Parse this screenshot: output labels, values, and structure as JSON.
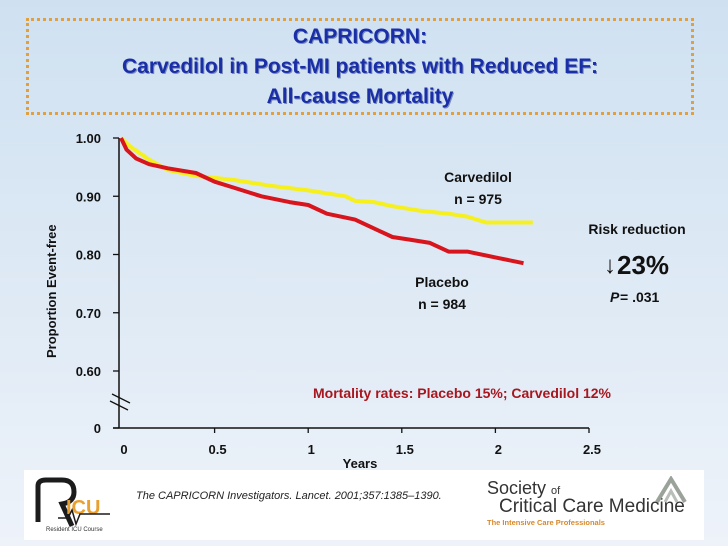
{
  "title": {
    "line1": "CAPRICORN:",
    "line2": "Carvedilol in Post-MI patients with Reduced EF:",
    "line3": "All-cause Mortality"
  },
  "annotations": {
    "carvedilol_label": "Carvedilol",
    "carvedilol_n": "n = 975",
    "placebo_label": "Placebo",
    "placebo_n": "n = 984",
    "risk_reduction_label": "Risk reduction",
    "risk_reduction_arrow": "↓",
    "risk_reduction_value": "23%",
    "p_label": "P",
    "p_value": " = .031",
    "mortality_rates": "Mortality rates: Placebo 15%;  Carvedilol 12%"
  },
  "footer": {
    "citation": "The CAPRICORN Investigators. Lancet. 2001;357:1385–1390.",
    "ricu_logo_text": "Resident ICU Course",
    "ricu_logo_mark": "RICU",
    "sccm_line1": "Society",
    "sccm_of": "of",
    "sccm_line2": "Critical Care Medicine",
    "sccm_line3": "The Intensive Care Professionals"
  },
  "chart_data": {
    "type": "line",
    "title": "CAPRICORN: Carvedilol in Post-MI patients with Reduced EF: All-cause Mortality",
    "xlabel": "Years",
    "ylabel": "Proportion Event-free",
    "xlim": [
      0,
      2.5
    ],
    "ylim_displayed": [
      0.6,
      1.0
    ],
    "y_axis_break": true,
    "x_ticks": [
      "0",
      "0.5",
      "1",
      "1.5",
      "2",
      "2.5"
    ],
    "x_tick_values": [
      0,
      0.5,
      1,
      1.5,
      2,
      2.5
    ],
    "y_ticks": [
      "1.00",
      "0.90",
      "0.80",
      "0.70",
      "0.60",
      "0"
    ],
    "y_tick_values": [
      1.0,
      0.9,
      0.8,
      0.7,
      0.6,
      0
    ],
    "grid": false,
    "legend": "none (direct labels)",
    "series": [
      {
        "name": "Carvedilol",
        "n": 975,
        "color": "#f5f01e",
        "x": [
          0,
          0.05,
          0.15,
          0.25,
          0.4,
          0.6,
          0.8,
          1.0,
          1.2,
          1.25,
          1.35,
          1.45,
          1.6,
          1.75,
          1.85,
          1.95,
          2.05,
          2.2
        ],
        "y": [
          1.0,
          0.985,
          0.963,
          0.945,
          0.935,
          0.928,
          0.918,
          0.91,
          0.9,
          0.892,
          0.89,
          0.883,
          0.875,
          0.87,
          0.865,
          0.855,
          0.855,
          0.855
        ]
      },
      {
        "name": "Placebo",
        "n": 984,
        "color": "#d8141c",
        "x": [
          0,
          0.03,
          0.08,
          0.15,
          0.25,
          0.4,
          0.5,
          0.6,
          0.75,
          0.9,
          1.0,
          1.1,
          1.25,
          1.35,
          1.45,
          1.55,
          1.65,
          1.75,
          1.85,
          2.0,
          2.15
        ],
        "y": [
          1.0,
          0.98,
          0.965,
          0.955,
          0.948,
          0.94,
          0.925,
          0.915,
          0.9,
          0.89,
          0.885,
          0.87,
          0.86,
          0.845,
          0.83,
          0.825,
          0.82,
          0.805,
          0.805,
          0.795,
          0.785
        ]
      }
    ],
    "annotations": [
      "Carvedilol n = 975",
      "Placebo n = 984",
      "Risk reduction ↓23%",
      "P = .031",
      "Mortality rates: Placebo 15%;  Carvedilol 12%"
    ]
  }
}
